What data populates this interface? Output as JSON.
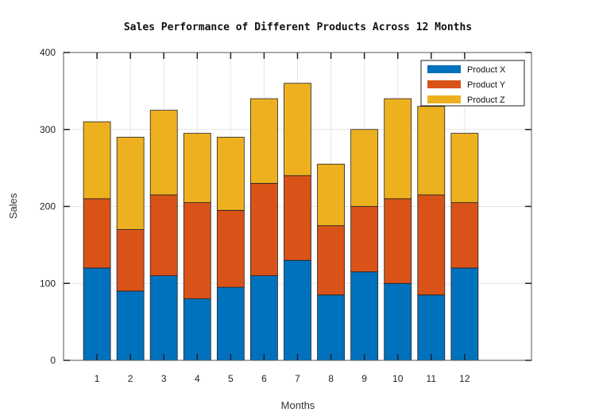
{
  "chart_data": {
    "type": "bar",
    "stacked": true,
    "title": "Sales Performance of Different Products Across 12 Months",
    "xlabel": "Months",
    "ylabel": "Sales",
    "categories": [
      "1",
      "2",
      "3",
      "4",
      "5",
      "6",
      "7",
      "8",
      "9",
      "10",
      "11",
      "12"
    ],
    "xlim": [
      0,
      14
    ],
    "ylim": [
      0,
      400
    ],
    "yticks": [
      0,
      100,
      200,
      300,
      400
    ],
    "grid": true,
    "legend_position": "top-right",
    "series": [
      {
        "name": "Product X",
        "color": "#0072BD",
        "values": [
          120,
          90,
          110,
          80,
          95,
          110,
          130,
          85,
          115,
          100,
          85,
          120
        ]
      },
      {
        "name": "Product Y",
        "color": "#D95319",
        "values": [
          90,
          80,
          105,
          125,
          100,
          120,
          110,
          90,
          85,
          110,
          130,
          85
        ]
      },
      {
        "name": "Product Z",
        "color": "#EDB120",
        "values": [
          100,
          120,
          110,
          90,
          95,
          110,
          120,
          80,
          100,
          130,
          115,
          90
        ]
      }
    ]
  }
}
